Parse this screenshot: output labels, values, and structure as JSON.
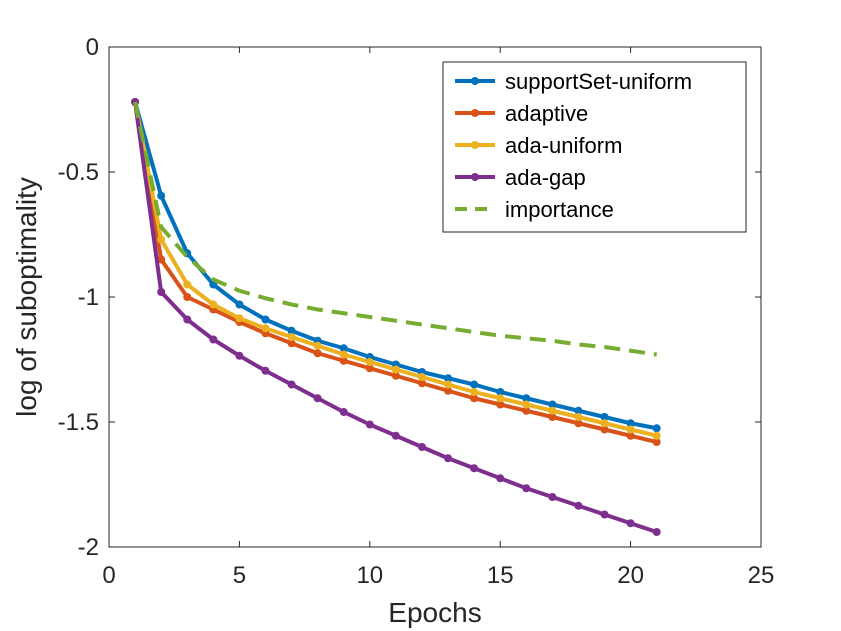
{
  "chart_data": {
    "type": "line",
    "title": "",
    "xlabel": "Epochs",
    "ylabel": "log of suboptimality",
    "xlim": [
      0,
      25
    ],
    "ylim": [
      -2,
      0
    ],
    "xticks": [
      0,
      5,
      10,
      15,
      20,
      25
    ],
    "yticks": [
      0,
      -0.5,
      -1,
      -1.5,
      -2
    ],
    "xtick_labels": [
      "0",
      "5",
      "10",
      "15",
      "20",
      "25"
    ],
    "ytick_labels": [
      "0",
      "-0.5",
      "-1",
      "-1.5",
      "-2"
    ],
    "grid": false,
    "legend_position": "top-right",
    "x": [
      1,
      2,
      3,
      4,
      5,
      6,
      7,
      8,
      9,
      10,
      11,
      12,
      13,
      14,
      15,
      16,
      17,
      18,
      19,
      20,
      21
    ],
    "series": [
      {
        "name": "supportSet-uniform",
        "color": "#0072BD",
        "style": "solid-marker",
        "values": [
          -0.22,
          -0.595,
          -0.825,
          -0.95,
          -1.03,
          -1.09,
          -1.135,
          -1.175,
          -1.205,
          -1.24,
          -1.27,
          -1.3,
          -1.325,
          -1.35,
          -1.38,
          -1.405,
          -1.43,
          -1.455,
          -1.48,
          -1.505,
          -1.525
        ]
      },
      {
        "name": "adaptive",
        "color": "#D95319",
        "style": "solid-marker",
        "values": [
          -0.22,
          -0.85,
          -1.0,
          -1.05,
          -1.1,
          -1.145,
          -1.185,
          -1.225,
          -1.255,
          -1.285,
          -1.315,
          -1.345,
          -1.375,
          -1.405,
          -1.43,
          -1.455,
          -1.48,
          -1.505,
          -1.53,
          -1.555,
          -1.58
        ]
      },
      {
        "name": "ada-uniform",
        "color": "#EDB120",
        "style": "solid-marker",
        "values": [
          -0.22,
          -0.77,
          -0.95,
          -1.03,
          -1.085,
          -1.125,
          -1.16,
          -1.195,
          -1.23,
          -1.26,
          -1.29,
          -1.32,
          -1.35,
          -1.38,
          -1.405,
          -1.43,
          -1.455,
          -1.48,
          -1.505,
          -1.53,
          -1.555
        ]
      },
      {
        "name": "ada-gap",
        "color": "#7E2F8E",
        "style": "solid-marker",
        "values": [
          -0.22,
          -0.98,
          -1.09,
          -1.17,
          -1.235,
          -1.295,
          -1.35,
          -1.405,
          -1.46,
          -1.51,
          -1.555,
          -1.6,
          -1.645,
          -1.685,
          -1.725,
          -1.765,
          -1.8,
          -1.835,
          -1.87,
          -1.905,
          -1.94
        ]
      },
      {
        "name": "importance",
        "color": "#77AC30",
        "style": "dashed",
        "values": [
          -0.22,
          -0.72,
          -0.84,
          -0.93,
          -0.975,
          -1.005,
          -1.03,
          -1.05,
          -1.065,
          -1.08,
          -1.095,
          -1.11,
          -1.125,
          -1.14,
          -1.155,
          -1.165,
          -1.175,
          -1.19,
          -1.2,
          -1.215,
          -1.23
        ]
      }
    ]
  }
}
